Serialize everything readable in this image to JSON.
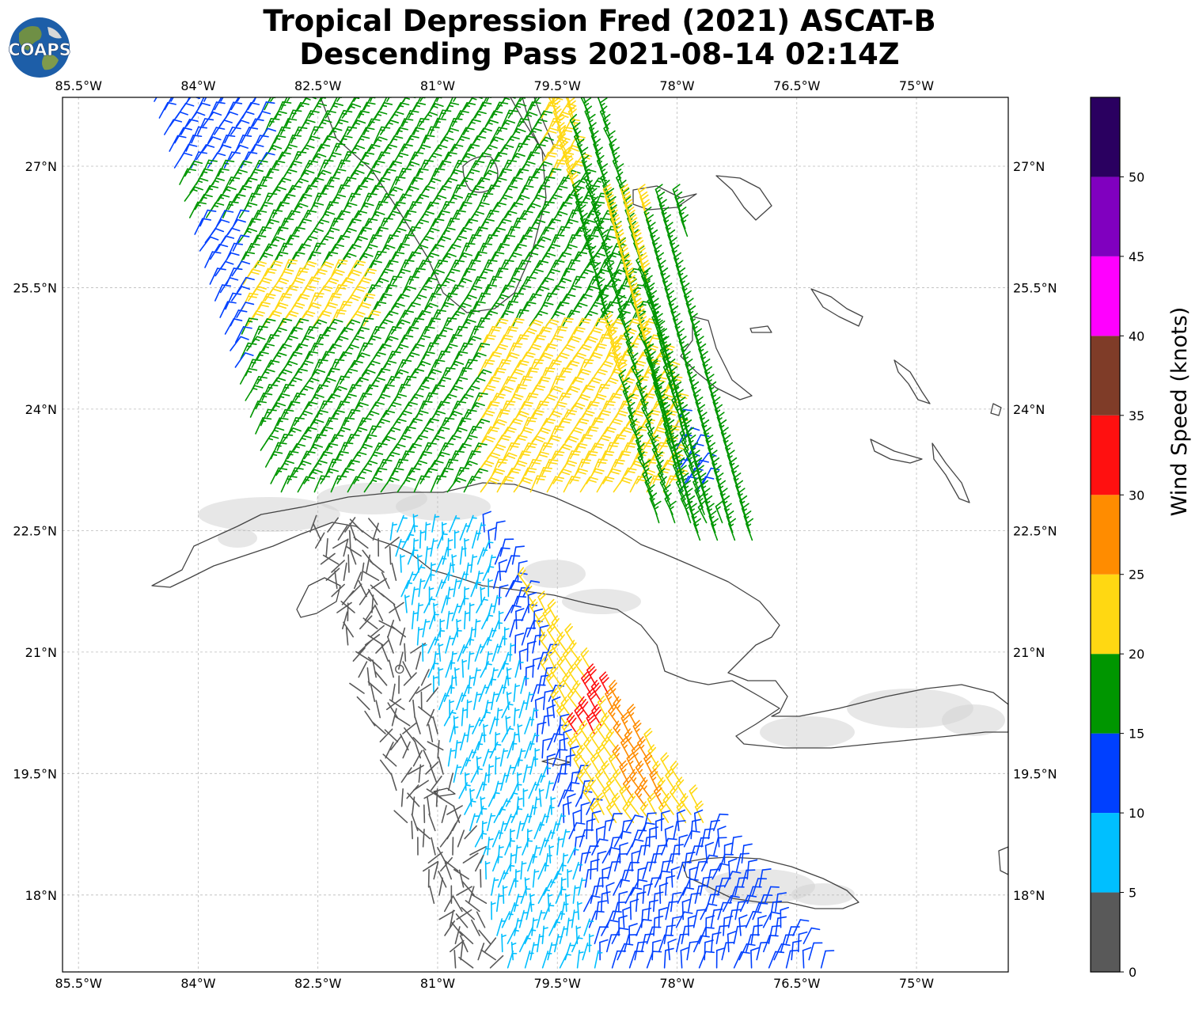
{
  "title": {
    "line1": "Tropical Depression Fred (2021) ASCAT-B",
    "line2": "Descending Pass 2021-08-14 02:14Z"
  },
  "logo": {
    "text": "COAPS",
    "icon": "globe-logo-icon"
  },
  "map": {
    "lon_range": [
      -85.7,
      -73.85
    ],
    "lat_range": [
      17.05,
      27.85
    ],
    "lon_ticks": [
      "85.5°W",
      "84°W",
      "82.5°W",
      "81°W",
      "79.5°W",
      "78°W",
      "76.5°W",
      "75°W"
    ],
    "lon_tick_values": [
      -85.5,
      -84,
      -82.5,
      -81,
      -79.5,
      -78,
      -76.5,
      -75
    ],
    "lat_ticks": [
      "27°N",
      "25.5°N",
      "24°N",
      "22.5°N",
      "21°N",
      "19.5°N",
      "18°N"
    ],
    "lat_tick_values": [
      27,
      25.5,
      24,
      22.5,
      21,
      19.5,
      18
    ],
    "gridlines": true,
    "colors": {
      "land_outline": "#444444",
      "grid": "#bbbbbb"
    }
  },
  "colorbar": {
    "label": "Wind Speed (knots)",
    "ticks": [
      "0",
      "5",
      "10",
      "15",
      "20",
      "25",
      "30",
      "35",
      "40",
      "45",
      "50"
    ],
    "bins": [
      {
        "from": 0,
        "to": 5,
        "color": "#595959"
      },
      {
        "from": 5,
        "to": 10,
        "color": "#00bfff"
      },
      {
        "from": 10,
        "to": 15,
        "color": "#0040ff"
      },
      {
        "from": 15,
        "to": 20,
        "color": "#009600"
      },
      {
        "from": 20,
        "to": 25,
        "color": "#ffd812"
      },
      {
        "from": 25,
        "to": 30,
        "color": "#ff8c00"
      },
      {
        "from": 30,
        "to": 35,
        "color": "#ff1010"
      },
      {
        "from": 35,
        "to": 40,
        "color": "#7f3c28"
      },
      {
        "from": 40,
        "to": 45,
        "color": "#ff00ff"
      },
      {
        "from": 45,
        "to": 50,
        "color": "#8000bf"
      },
      {
        "from": 50,
        "to": 55,
        "color": "#2a0060"
      }
    ]
  }
}
